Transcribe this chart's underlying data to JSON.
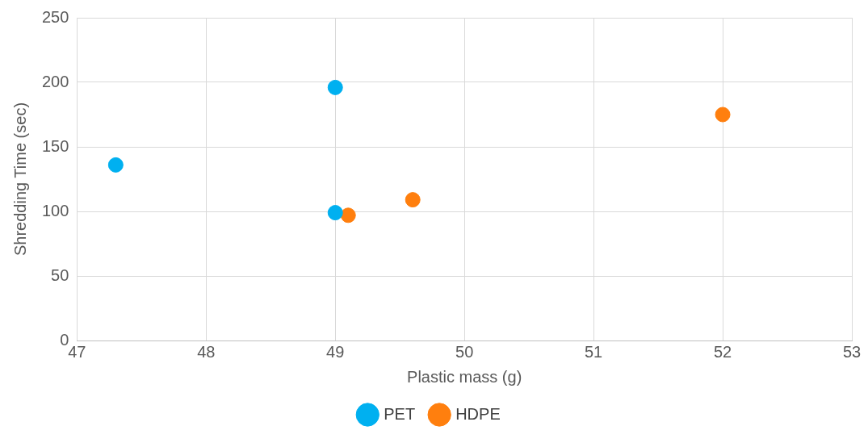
{
  "chart_data": {
    "type": "scatter",
    "xlabel": "Plastic mass (g)",
    "ylabel": "Shredding Time (sec)",
    "xlim": [
      47,
      53
    ],
    "xticks": [
      47,
      48,
      49,
      50,
      51,
      52,
      53
    ],
    "ylim": [
      0,
      250
    ],
    "yticks": [
      0,
      50,
      100,
      150,
      200,
      250
    ],
    "grid": true,
    "legend": "bottom",
    "marker": "circle",
    "series": [
      {
        "name": "PET",
        "color": "#00b0f0",
        "x": [
          47.3,
          49,
          49
        ],
        "values": [
          136,
          196,
          99
        ]
      },
      {
        "name": "HDPE",
        "color": "#ff7f0e",
        "x": [
          49.1,
          49.6,
          52
        ],
        "values": [
          97,
          109,
          175
        ]
      }
    ]
  }
}
